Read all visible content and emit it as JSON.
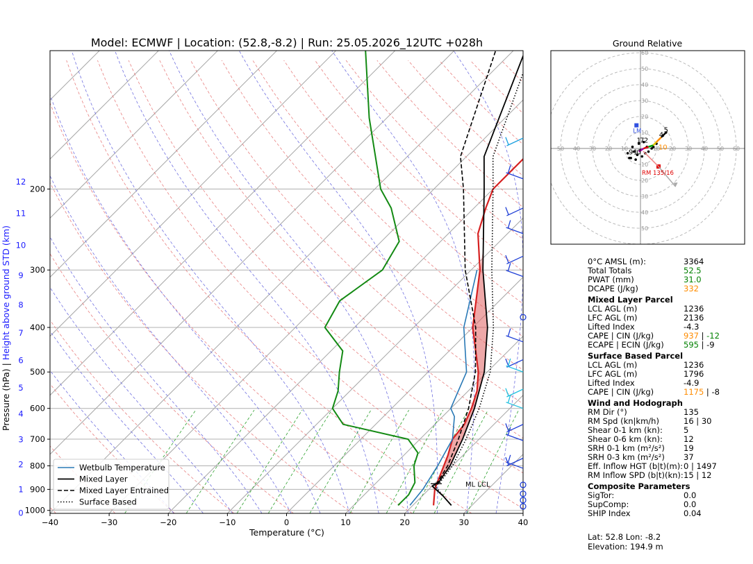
{
  "title": "Model: ECMWF | Location: (52.8,-8.2) | Run: 25.05.2026_12UTC +028h",
  "colors": {
    "temperature": "#d62020",
    "dewpoint": "#138a13",
    "wetbulb": "#2878b5",
    "cape_fill": "#e06060",
    "wind_barb": "#1f3fd6",
    "isotherm_grid": "#999999",
    "dry_adiabat": "#e88080",
    "moist_adiabat": "#7070e0",
    "mixing_ratio": "#2ca02c",
    "hodo_rm": "#e00000",
    "hodo_lm": "#3050e0",
    "orange": "#ff8c00",
    "green": "#008000"
  },
  "chart_data": [
    {
      "type": "line",
      "subtype": "skew-t log-p",
      "title": "Model: ECMWF | Location: (52.8,-8.2) | Run: 25.05.2026_12UTC +028h",
      "xlabel": "Temperature (°C)",
      "ylabel": "Pressure (hPa)",
      "ylabel_right": "Height above ground STD (km)",
      "xlim": [
        -40,
        40
      ],
      "ylim": [
        1015,
        100
      ],
      "x_ticks": [
        "−40",
        "−30",
        "−20",
        "−10",
        "0",
        "10",
        "20",
        "30",
        "40"
      ],
      "x_tick_values": [
        -40,
        -30,
        -20,
        -10,
        0,
        10,
        20,
        30,
        40
      ],
      "y_ticks": [
        1000,
        900,
        800,
        700,
        600,
        500,
        400,
        300,
        200
      ],
      "height_ticks": [
        {
          "km": "0",
          "p": 1013
        },
        {
          "km": "1",
          "p": 900
        },
        {
          "km": "2",
          "p": 795
        },
        {
          "km": "3",
          "p": 701
        },
        {
          "km": "4",
          "p": 616
        },
        {
          "km": "5",
          "p": 541
        },
        {
          "km": "6",
          "p": 472
        },
        {
          "km": "7",
          "p": 411
        },
        {
          "km": "8",
          "p": 357
        },
        {
          "km": "9",
          "p": 308
        },
        {
          "km": "10",
          "p": 265
        },
        {
          "km": "11",
          "p": 226
        },
        {
          "km": "12",
          "p": 193
        }
      ],
      "grid": true,
      "legend_position": "bottom-left",
      "legend": [
        "Wetbulb Temperature",
        "Mixed Layer",
        "Mixed Layer Entrained",
        "Surface Based"
      ],
      "ml_lcl_label": "ML LCL",
      "ml_lcl_p": 875,
      "series": [
        {
          "name": "Temperature",
          "points": [
            [
              23.5,
              975
            ],
            [
              21,
              900
            ],
            [
              19.8,
              850
            ],
            [
              17.5,
              760
            ],
            [
              15.5,
              700
            ],
            [
              15,
              650
            ],
            [
              13.5,
              600
            ],
            [
              11.5,
              550
            ],
            [
              8.5,
              500
            ],
            [
              0,
              400
            ],
            [
              -8.5,
              300
            ],
            [
              -15,
              250
            ],
            [
              -18,
              220
            ],
            [
              -20,
              200
            ],
            [
              -20,
              150
            ],
            [
              -12.5,
              100
            ]
          ]
        },
        {
          "name": "Dewpoint",
          "points": [
            [
              17.5,
              975
            ],
            [
              17.5,
              925
            ],
            [
              16.5,
              870
            ],
            [
              13.5,
              800
            ],
            [
              12,
              750
            ],
            [
              8,
              700
            ],
            [
              -5.5,
              650
            ],
            [
              -10,
              600
            ],
            [
              -12,
              550
            ],
            [
              -15,
              500
            ],
            [
              -18,
              450
            ],
            [
              -25,
              400
            ],
            [
              -27,
              350
            ],
            [
              -25,
              300
            ],
            [
              -27,
              260
            ],
            [
              -34,
              220
            ],
            [
              -39,
              200
            ],
            [
              -53,
              140
            ],
            [
              -65,
              100
            ]
          ]
        },
        {
          "name": "Wetbulb Temperature",
          "points": [
            [
              19.5,
              975
            ],
            [
              19,
              900
            ],
            [
              17.5,
              800
            ],
            [
              15.5,
              700
            ],
            [
              12,
              625
            ],
            [
              10,
              600
            ],
            [
              6.5,
              500
            ],
            [
              -1.5,
              400
            ],
            [
              -9,
              300
            ]
          ]
        },
        {
          "name": "Mixed Layer",
          "points": [
            [
              26.5,
              975
            ],
            [
              23.5,
              930
            ],
            [
              20,
              885
            ],
            [
              20.5,
              870
            ],
            [
              19.6,
              800
            ],
            [
              17.2,
              700
            ],
            [
              14,
              600
            ],
            [
              9.5,
              500
            ],
            [
              2.5,
              400
            ],
            [
              -8,
              300
            ],
            [
              -21.5,
              200
            ],
            [
              -27,
              170
            ],
            [
              -38,
              100
            ]
          ]
        },
        {
          "name": "Mixed Layer Entrained",
          "points": [
            [
              26.5,
              975
            ],
            [
              23.5,
              930
            ],
            [
              20,
              885
            ],
            [
              20.3,
              870
            ],
            [
              19.2,
              800
            ],
            [
              16.5,
              700
            ],
            [
              13,
              600
            ],
            [
              8,
              500
            ],
            [
              0.5,
              400
            ],
            [
              -11,
              300
            ],
            [
              -25,
              200
            ],
            [
              -31,
              170
            ],
            [
              -43,
              100
            ]
          ]
        },
        {
          "name": "Surface Based",
          "points": [
            [
              26.5,
              975
            ],
            [
              23.5,
              930
            ],
            [
              20.5,
              885
            ],
            [
              20.7,
              870
            ],
            [
              20,
              800
            ],
            [
              17.8,
              700
            ],
            [
              14.8,
              600
            ],
            [
              10.5,
              500
            ],
            [
              3.5,
              400
            ],
            [
              -6.5,
              300
            ],
            [
              -20,
              200
            ],
            [
              -25.5,
              170
            ],
            [
              -37,
              100
            ]
          ]
        }
      ],
      "cape_region": {
        "parcel": [
          [
            20.5,
            870
          ],
          [
            19.6,
            800
          ],
          [
            17.2,
            700
          ],
          [
            14,
            600
          ],
          [
            9.5,
            500
          ],
          [
            2.5,
            400
          ],
          [
            -8,
            300
          ],
          [
            -11,
            275
          ]
        ],
        "environment": [
          [
            20.5,
            870
          ],
          [
            19.8,
            850
          ],
          [
            17.5,
            760
          ],
          [
            15.5,
            700
          ],
          [
            15,
            650
          ],
          [
            13.5,
            600
          ],
          [
            11.5,
            550
          ],
          [
            8.5,
            500
          ],
          [
            0,
            400
          ],
          [
            -8.5,
            300
          ],
          [
            -11,
            275
          ]
        ]
      },
      "wind_barbs": [
        {
          "p": 155,
          "style": "barb",
          "color": "#1aa0e0"
        },
        {
          "p": 190,
          "style": "barb",
          "color": "#1f3fd6"
        },
        {
          "p": 220,
          "style": "barb",
          "color": "#1f3fd6"
        },
        {
          "p": 250,
          "style": "barb",
          "color": "#1f3fd6"
        },
        {
          "p": 280,
          "style": "barb",
          "color": "#1f3fd6"
        },
        {
          "p": 310,
          "style": "barb",
          "color": "#1f3fd6"
        },
        {
          "p": 380,
          "style": "calm",
          "color": "#1f3fd6"
        },
        {
          "p": 430,
          "style": "barb",
          "color": "#1f3fd6"
        },
        {
          "p": 470,
          "style": "barb",
          "color": "#1f3fd6"
        },
        {
          "p": 500,
          "style": "barb",
          "color": "#1fc0e0"
        },
        {
          "p": 545,
          "style": "barb",
          "color": "#1fc0e0"
        },
        {
          "p": 600,
          "style": "barb",
          "color": "#1fc0e0"
        },
        {
          "p": 650,
          "style": "barb",
          "color": "#1f3fd6"
        },
        {
          "p": 705,
          "style": "barb",
          "color": "#1f3fd6"
        },
        {
          "p": 770,
          "style": "barb",
          "color": "#1f3fd6"
        },
        {
          "p": 810,
          "style": "barb",
          "color": "#1f3fd6"
        },
        {
          "p": 880,
          "style": "calm",
          "color": "#1f3fd6"
        },
        {
          "p": 920,
          "style": "calm",
          "color": "#1f3fd6"
        },
        {
          "p": 950,
          "style": "calm",
          "color": "#1f3fd6"
        },
        {
          "p": 980,
          "style": "calm",
          "color": "#1f3fd6"
        }
      ]
    },
    {
      "type": "scatter",
      "subtype": "hodograph",
      "title": "Ground Relative",
      "xlim": [
        -60,
        60
      ],
      "ylim": [
        -60,
        60
      ],
      "rings": [
        10,
        20,
        30,
        40,
        50,
        60
      ],
      "ring_labels_x": [
        "50",
        "40",
        "30",
        "20",
        "10",
        "10",
        "20",
        "30",
        "40",
        "50",
        "60"
      ],
      "ring_labels_x_values": [
        -50,
        -40,
        -30,
        -20,
        -10,
        10,
        20,
        30,
        40,
        50,
        60
      ],
      "ring_labels_y": [
        "10",
        "20",
        "30",
        "40",
        "50",
        "60"
      ],
      "ring_labels_y_neg": [
        "10",
        "20",
        "30",
        "40",
        "50"
      ],
      "storm_motions": [
        {
          "label": "RM 135/16",
          "u": 11.3,
          "v": -11.3,
          "color": "#e00000"
        },
        {
          "label": "LM",
          "u": -2.5,
          "v": 14.5,
          "color": "#3050e0"
        }
      ],
      "height_labels": [
        {
          "text": "5",
          "u": 16,
          "v": 12
        },
        {
          "text": "4",
          "u": 13,
          "v": 9
        },
        {
          "text": "1",
          "u": -1,
          "v": 5.5
        },
        {
          "text": "7",
          "u": 1,
          "v": 5.5
        },
        {
          "text": "2",
          "u": 3.5,
          "v": 5.5
        },
        {
          "text": "9",
          "u": -6,
          "v": -2
        },
        {
          "text": "1",
          "u": -3,
          "v": -2
        },
        {
          "text": "10",
          "u": 14,
          "v": 1
        },
        {
          "text": "0",
          "u": -1,
          "v": -2
        }
      ],
      "trace": [
        {
          "u": -1,
          "v": -2,
          "color": "#a000a0"
        },
        {
          "u": 2,
          "v": 0,
          "color": "#a000a0"
        },
        {
          "u": 5,
          "v": 1,
          "color": "#e00000"
        },
        {
          "u": 8,
          "v": 2,
          "color": "#00a000"
        },
        {
          "u": 10,
          "v": 4,
          "color": "#e0c000"
        },
        {
          "u": 13,
          "v": 7,
          "color": "#ff8c00"
        },
        {
          "u": 16,
          "v": 10,
          "color": "#000000"
        }
      ],
      "scatter_points": [
        [
          -6,
          -6
        ],
        [
          -3,
          -7
        ],
        [
          -8,
          -3
        ],
        [
          -4,
          -2
        ],
        [
          -2,
          -4
        ],
        [
          1,
          -5
        ],
        [
          3,
          -3
        ],
        [
          5,
          -2
        ],
        [
          7,
          0
        ],
        [
          -1,
          3
        ],
        [
          2,
          4
        ],
        [
          4,
          1
        ],
        [
          8,
          1
        ],
        [
          10,
          3
        ],
        [
          14,
          8
        ],
        [
          16,
          10
        ],
        [
          -5,
          1
        ],
        [
          0,
          -1
        ],
        [
          -7,
          -6
        ]
      ]
    }
  ],
  "params": [
    {
      "kind": "row",
      "label": "0°C AMSL (m):",
      "values": [
        {
          "text": "3364",
          "color": "#000000"
        }
      ]
    },
    {
      "kind": "row",
      "label": "Total Totals",
      "values": [
        {
          "text": "52.5",
          "color": "#008000"
        }
      ]
    },
    {
      "kind": "row",
      "label": "PWAT (mm)",
      "values": [
        {
          "text": "31.0",
          "color": "#008000"
        }
      ]
    },
    {
      "kind": "row",
      "label": "DCAPE (J/kg)",
      "values": [
        {
          "text": "332",
          "color": "#ff8c00"
        }
      ]
    },
    {
      "kind": "section",
      "label": "Mixed Layer Parcel"
    },
    {
      "kind": "row",
      "label": "LCL AGL (m)",
      "values": [
        {
          "text": "1236",
          "color": "#000000"
        }
      ]
    },
    {
      "kind": "row",
      "label": "LFC AGL (m)",
      "values": [
        {
          "text": "2136",
          "color": "#000000"
        }
      ]
    },
    {
      "kind": "row",
      "label": "Lifted Index",
      "values": [
        {
          "text": "-4.3",
          "color": "#000000"
        }
      ]
    },
    {
      "kind": "row",
      "label": "CAPE | CIN (J/kg)",
      "values": [
        {
          "text": "937",
          "color": "#ff8c00"
        },
        {
          "text": " | ",
          "color": "#000000"
        },
        {
          "text": "-12",
          "color": "#008000"
        }
      ]
    },
    {
      "kind": "row",
      "label": "ECAPE | ECIN (J/kg)",
      "values": [
        {
          "text": "595",
          "color": "#008000"
        },
        {
          "text": " | -9",
          "color": "#000000"
        }
      ]
    },
    {
      "kind": "section",
      "label": "Surface Based Parcel"
    },
    {
      "kind": "row",
      "label": "LCL AGL (m)",
      "values": [
        {
          "text": "1236",
          "color": "#000000"
        }
      ]
    },
    {
      "kind": "row",
      "label": "LFC AGL (m)",
      "values": [
        {
          "text": "1796",
          "color": "#000000"
        }
      ]
    },
    {
      "kind": "row",
      "label": "Lifted Index",
      "values": [
        {
          "text": "-4.9",
          "color": "#000000"
        }
      ]
    },
    {
      "kind": "row",
      "label": "CAPE | CIN (J/kg)",
      "values": [
        {
          "text": "1175",
          "color": "#ff8c00"
        },
        {
          "text": " | -8",
          "color": "#000000"
        }
      ]
    },
    {
      "kind": "section",
      "label": "Wind and Hodograph"
    },
    {
      "kind": "row",
      "label": "RM Dir (°)",
      "values": [
        {
          "text": "135",
          "color": "#000000"
        }
      ]
    },
    {
      "kind": "row",
      "label": "RM Spd (kn|km/h)",
      "values": [
        {
          "text": "16 | 30",
          "color": "#000000"
        }
      ]
    },
    {
      "kind": "row",
      "label": "Shear 0-1 km (kn):",
      "values": [
        {
          "text": "5",
          "color": "#000000"
        }
      ]
    },
    {
      "kind": "row",
      "label": "Shear 0-6 km (kn):",
      "values": [
        {
          "text": "12",
          "color": "#000000"
        }
      ]
    },
    {
      "kind": "row",
      "label": "SRH 0-1 km (m²/s²)",
      "values": [
        {
          "text": "19",
          "color": "#000000"
        }
      ]
    },
    {
      "kind": "row",
      "label": "SRH 0-3 km (m²/s²)",
      "values": [
        {
          "text": "37",
          "color": "#000000"
        }
      ]
    },
    {
      "kind": "row",
      "label": "Eff. Inflow HGT (b|t)(m):",
      "values": [
        {
          "text": "0 | 1497",
          "color": "#000000"
        }
      ]
    },
    {
      "kind": "row",
      "label": "RM Inflow SPD (b|t)(kn):",
      "values": [
        {
          "text": "15 | 12",
          "color": "#000000"
        }
      ]
    },
    {
      "kind": "section",
      "label": "Composite Parameters"
    },
    {
      "kind": "row",
      "label": "SigTor:",
      "values": [
        {
          "text": "0.0",
          "color": "#000000"
        }
      ]
    },
    {
      "kind": "row",
      "label": "SupComp:",
      "values": [
        {
          "text": "0.0",
          "color": "#000000"
        }
      ]
    },
    {
      "kind": "row",
      "label": "SHIP Index",
      "values": [
        {
          "text": "0.04",
          "color": "#000000"
        }
      ]
    }
  ],
  "footer": {
    "location": "Lat: 52.8  Lon: -8.2",
    "elevation": "Elevation: 194.9 m"
  }
}
